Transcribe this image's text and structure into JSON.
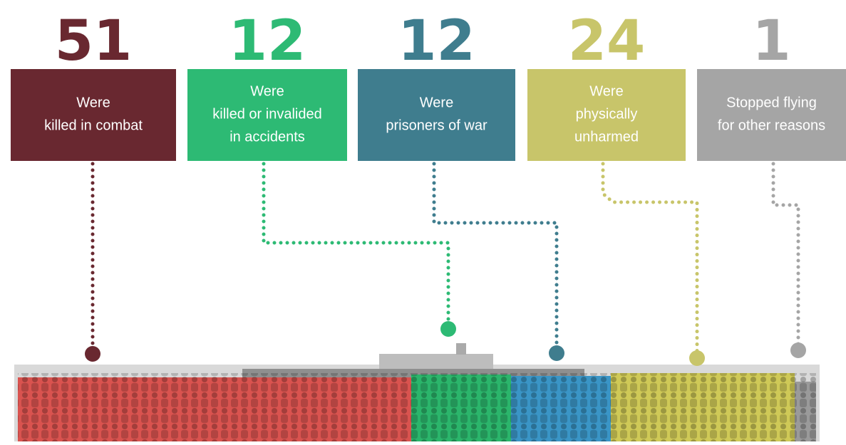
{
  "items": [
    {
      "number": 51,
      "lines": [
        "Were",
        "killed in combat"
      ]
    },
    {
      "number": 12,
      "lines": [
        "Were",
        "killed or invalided",
        "in accidents"
      ]
    },
    {
      "number": 12,
      "lines": [
        "Were",
        "prisoners of war"
      ]
    },
    {
      "number": 24,
      "lines": [
        "Were",
        "physically",
        "unharmed"
      ]
    },
    {
      "number": 1,
      "lines": [
        "Stopped flying",
        "for other reasons"
      ]
    }
  ]
}
